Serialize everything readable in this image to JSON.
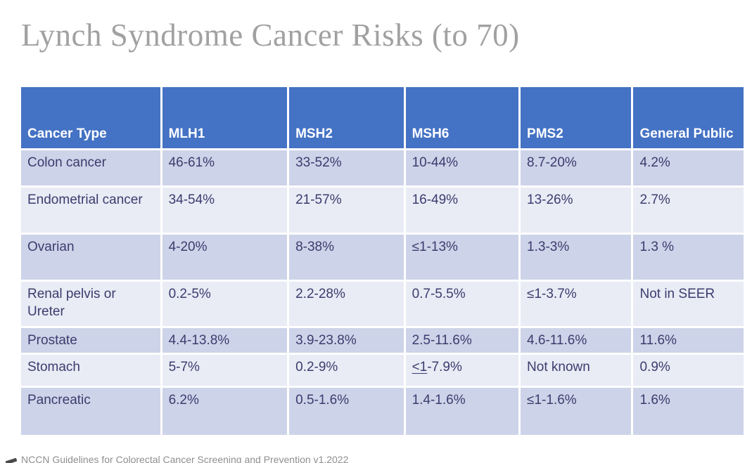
{
  "chart_data": {
    "type": "table",
    "title": "Lynch Syndrome Cancer Risks (to 70)",
    "columns": [
      "Cancer Type",
      "MLH1",
      "MSH2",
      "MSH6",
      "PMS2",
      "General Public"
    ],
    "rows": [
      [
        "Colon cancer",
        "46-61%",
        "33-52%",
        "10-44%",
        "8.7-20%",
        "4.2%"
      ],
      [
        "Endometrial cancer",
        "34-54%",
        "21-57%",
        "16-49%",
        "13-26%",
        "2.7%"
      ],
      [
        "Ovarian",
        "4-20%",
        "8-38%",
        "≤1-13%",
        "1.3-3%",
        "1.3 %"
      ],
      [
        "Renal pelvis or Ureter",
        "0.2-5%",
        "2.2-28%",
        "0.7-5.5%",
        "≤1-3.7%",
        "Not in SEER"
      ],
      [
        "Prostate",
        "4.4-13.8%",
        "3.9-23.8%",
        "2.5-11.6%",
        "4.6-11.6%",
        "11.6%"
      ],
      [
        "Stomach",
        "5-7%",
        "0.2-9%",
        "<1-7.9%",
        "Not known",
        "0.9%"
      ],
      [
        "Pancreatic",
        "6.2%",
        "0.5-1.6%",
        "1.4-1.6%",
        "≤1-1.6%",
        "1.6%"
      ]
    ],
    "source_note": "NCCN Guidelines for Colorectal Cancer Screening and Prevention v1.2022",
    "layout": {
      "header_position": "top",
      "banded_rows": true,
      "band_order_from_first_row": [
        "dark",
        "light",
        "dark",
        "light",
        "dark",
        "light",
        "dark"
      ]
    }
  },
  "special_cells": {
    "stomach_msh6": {
      "underlined": "<1",
      "rest": "-7.9%"
    }
  },
  "colors": {
    "header_bg": "#4472C4",
    "header_text": "#FFFFFF",
    "band_dark": "#CDD3E8",
    "band_light": "#E9EBF5",
    "cell_text": "#3C3C6E",
    "title_text": "#A1A1A1",
    "footer_text": "#8F8F8F"
  }
}
